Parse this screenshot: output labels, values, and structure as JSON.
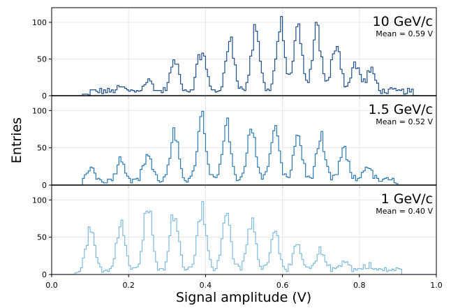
{
  "chart_data": {
    "type": "step-histogram",
    "xlabel": "Signal amplitude (V)",
    "ylabel": "Entries",
    "xlim": [
      0.0,
      1.0
    ],
    "x_ticks": [
      "0.0",
      "0.2",
      "0.4",
      "0.6",
      "0.8",
      "1.0"
    ],
    "grid": true,
    "bin_width": 0.005,
    "panels": [
      {
        "title": "10 GeV/c",
        "mean_label": "Mean = 0.59 V",
        "color": "#1f4e8c",
        "ylim": [
          0,
          120
        ],
        "y_ticks": [
          "0",
          "50",
          "100"
        ],
        "x_range": [
          0.08,
          0.94
        ],
        "peaks": [
          {
            "x": 0.18,
            "h": 5
          },
          {
            "x": 0.25,
            "h": 15
          },
          {
            "x": 0.32,
            "h": 40
          },
          {
            "x": 0.39,
            "h": 55
          },
          {
            "x": 0.465,
            "h": 70
          },
          {
            "x": 0.53,
            "h": 80
          },
          {
            "x": 0.595,
            "h": 88
          },
          {
            "x": 0.64,
            "h": 80
          },
          {
            "x": 0.69,
            "h": 82
          },
          {
            "x": 0.74,
            "h": 68
          },
          {
            "x": 0.79,
            "h": 38
          },
          {
            "x": 0.83,
            "h": 28
          }
        ]
      },
      {
        "title": "1.5 GeV/c",
        "mean_label": "Mean = 0.52 V",
        "color": "#2a78b5",
        "ylim": [
          0,
          120
        ],
        "y_ticks": [
          "0",
          "50",
          "100"
        ],
        "x_range": [
          0.08,
          0.9
        ],
        "peaks": [
          {
            "x": 0.1,
            "h": 20
          },
          {
            "x": 0.18,
            "h": 28
          },
          {
            "x": 0.25,
            "h": 35
          },
          {
            "x": 0.32,
            "h": 60
          },
          {
            "x": 0.39,
            "h": 82
          },
          {
            "x": 0.455,
            "h": 78
          },
          {
            "x": 0.52,
            "h": 72
          },
          {
            "x": 0.58,
            "h": 70
          },
          {
            "x": 0.64,
            "h": 62
          },
          {
            "x": 0.7,
            "h": 55
          },
          {
            "x": 0.76,
            "h": 40
          },
          {
            "x": 0.82,
            "h": 20
          }
        ]
      },
      {
        "title": "1 GeV/c",
        "mean_label": "Mean = 0.40 V",
        "color": "#7fb9de",
        "ylim": [
          0,
          120
        ],
        "y_ticks": [
          "0",
          "50",
          "100"
        ],
        "x_range": [
          0.06,
          0.91
        ],
        "peaks": [
          {
            "x": 0.1,
            "h": 52
          },
          {
            "x": 0.18,
            "h": 65
          },
          {
            "x": 0.25,
            "h": 90
          },
          {
            "x": 0.32,
            "h": 80
          },
          {
            "x": 0.39,
            "h": 85
          },
          {
            "x": 0.455,
            "h": 75
          },
          {
            "x": 0.52,
            "h": 65
          },
          {
            "x": 0.58,
            "h": 55
          },
          {
            "x": 0.64,
            "h": 30
          },
          {
            "x": 0.7,
            "h": 25
          },
          {
            "x": 0.76,
            "h": 12
          },
          {
            "x": 0.82,
            "h": 6
          }
        ]
      }
    ]
  }
}
